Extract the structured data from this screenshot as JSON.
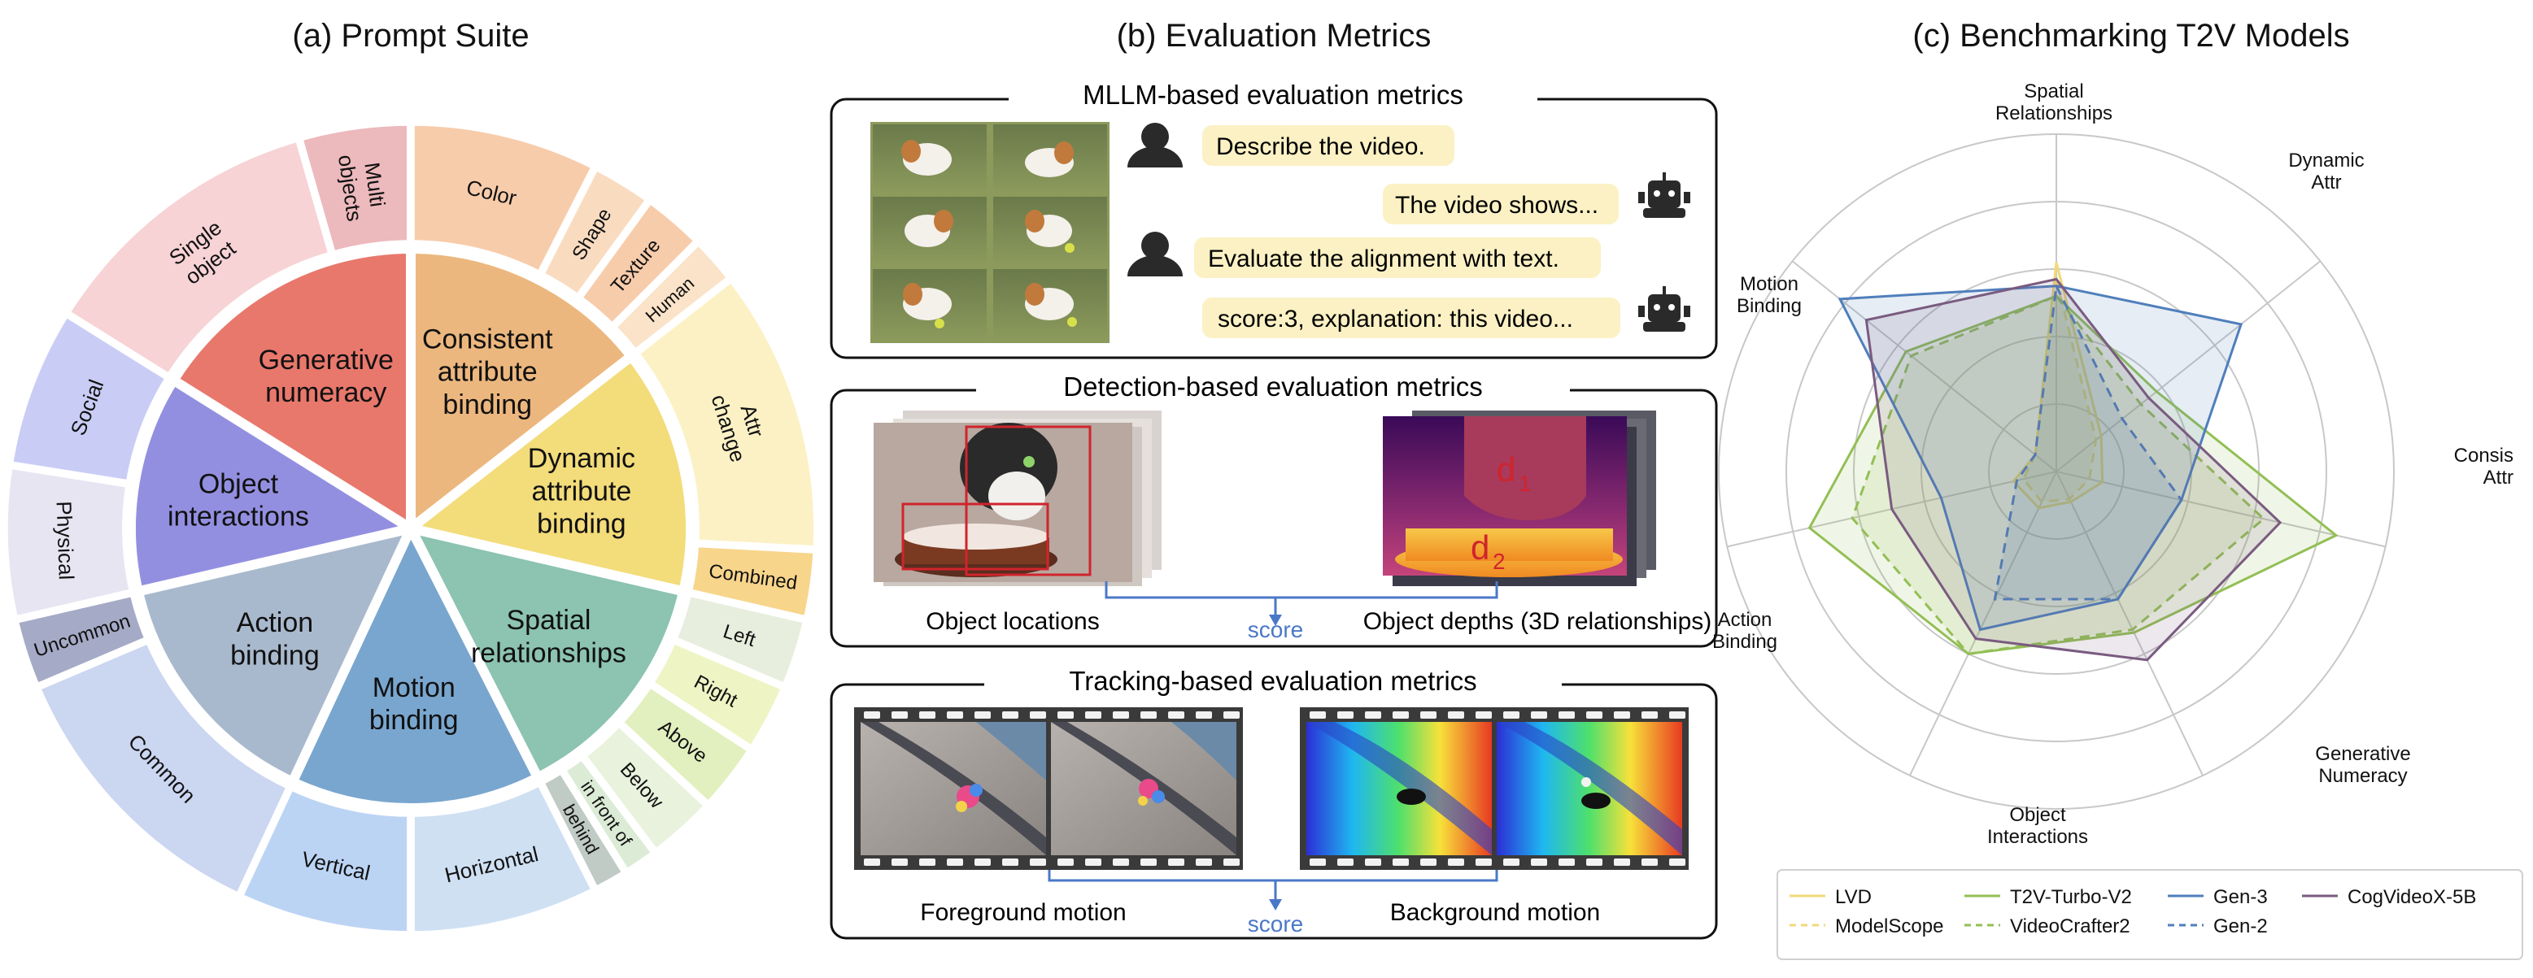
{
  "panel_a": {
    "title": "(a) Prompt Suite",
    "inner": [
      {
        "lines": [
          "Generative",
          "numeracy"
        ],
        "color": "#e8786c"
      },
      {
        "lines": [
          "Consistent",
          "attribute",
          "binding"
        ],
        "color": "#ecb77e"
      },
      {
        "lines": [
          "Dynamic",
          "attribute",
          "binding"
        ],
        "color": "#f3dc7a"
      },
      {
        "lines": [
          "Spatial",
          "relationships"
        ],
        "color": "#8cc3b1"
      },
      {
        "lines": [
          "Motion",
          "binding"
        ],
        "color": "#79a6cf"
      },
      {
        "lines": [
          "Action",
          "binding"
        ],
        "color": "#a9b9cd"
      },
      {
        "lines": [
          "Object",
          "interactions"
        ],
        "color": "#938fe0"
      }
    ],
    "outer": [
      {
        "lines": [
          "Multi",
          "objects"
        ],
        "color": "#ecb9bd"
      },
      {
        "lines": [
          "Color"
        ],
        "color": "#f7ccab"
      },
      {
        "lines": [
          "Shape"
        ],
        "color": "#f9dcc0"
      },
      {
        "lines": [
          "Texture"
        ],
        "color": "#f7ccab"
      },
      {
        "lines": [
          "Human"
        ],
        "color": "#fae3c8"
      },
      {
        "lines": [
          "Attr",
          "change"
        ],
        "color": "#fcf1c5"
      },
      {
        "lines": [
          "Combined"
        ],
        "color": "#f7d58b"
      },
      {
        "lines": [
          "Left"
        ],
        "color": "#e8eedd"
      },
      {
        "lines": [
          "Right"
        ],
        "color": "#eef4c4"
      },
      {
        "lines": [
          "Above"
        ],
        "color": "#e2efbf"
      },
      {
        "lines": [
          "Below"
        ],
        "color": "#e9f2dc"
      },
      {
        "lines": [
          "in front of"
        ],
        "color": "#dcebd6"
      },
      {
        "lines": [
          "behind"
        ],
        "color": "#bfcbc4"
      },
      {
        "lines": [
          "Horizontal"
        ],
        "color": "#cfe0f3"
      },
      {
        "lines": [
          "Vertical"
        ],
        "color": "#bcd4f4"
      },
      {
        "lines": [
          "Common"
        ],
        "color": "#cbd6f1"
      },
      {
        "lines": [
          "Uncommon"
        ],
        "color": "#a5aac6"
      },
      {
        "lines": [
          "Physical"
        ],
        "color": "#e8e5f2"
      },
      {
        "lines": [
          "Social"
        ],
        "color": "#c9cdf5"
      },
      {
        "lines": [
          "Single",
          "object"
        ],
        "color": "#f7d3d6"
      }
    ]
  },
  "panel_b": {
    "title": "(b) Evaluation Metrics",
    "mllm": {
      "title": "MLLM-based evaluation metrics",
      "user_msg_1": "Describe the video.",
      "bot_msg_1": "The video shows...",
      "user_msg_2": "Evaluate the alignment with text.",
      "bot_msg_2": "score:3, explanation: this video..."
    },
    "detection": {
      "title": "Detection-based evaluation metrics",
      "left_caption": "Object locations",
      "right_caption": "Object depths (3D relationships)",
      "score_label": "score",
      "d1_label": "d",
      "d1_sub": "1",
      "d2_label": "d",
      "d2_sub": "2"
    },
    "tracking": {
      "title": "Tracking-based evaluation metrics",
      "left_caption": "Foreground motion",
      "right_caption": "Background motion",
      "score_label": "score"
    }
  },
  "panel_c": {
    "title": "(c) Benchmarking T2V Models",
    "chart_data": {
      "type": "radar",
      "axes": [
        [
          "Spatial",
          "Relationships"
        ],
        [
          "Dynamic",
          "Attr"
        ],
        [
          "Consis",
          "Attr"
        ],
        [
          "Generative",
          "Numeracy"
        ],
        [
          "Object",
          "Interactions"
        ],
        [
          "Action",
          "Binding"
        ],
        [
          "Motion",
          "Binding"
        ]
      ],
      "range": [
        0,
        1
      ],
      "grid": true,
      "legend_position": "bottom",
      "series": [
        {
          "name": "LVD",
          "color": "#f1d97a",
          "dash": false,
          "values": [
            0.62,
            0.17,
            0.14,
            0.1,
            0.12,
            0.13,
            0.08
          ]
        },
        {
          "name": "ModelScope",
          "color": "#f1d97a",
          "dash": true,
          "values": [
            0.57,
            0.15,
            0.1,
            0.09,
            0.1,
            0.1,
            0.08
          ]
        },
        {
          "name": "T2V-Turbo-V2",
          "color": "#93bf55",
          "dash": false,
          "values": [
            0.52,
            0.38,
            0.85,
            0.53,
            0.6,
            0.75,
            0.57
          ]
        },
        {
          "name": "VideoCrafter2",
          "color": "#93bf55",
          "dash": true,
          "values": [
            0.52,
            0.32,
            0.63,
            0.52,
            0.6,
            0.62,
            0.55
          ]
        },
        {
          "name": "Gen-3",
          "color": "#4f7fbb",
          "dash": false,
          "values": [
            0.55,
            0.7,
            0.38,
            0.42,
            0.52,
            0.35,
            0.82
          ]
        },
        {
          "name": "Gen-2",
          "color": "#4f7fbb",
          "dash": true,
          "values": [
            0.55,
            0.25,
            0.38,
            0.42,
            0.42,
            0.12,
            0.08
          ]
        },
        {
          "name": "CogVideoX-5B",
          "color": "#7a5b80",
          "dash": false,
          "values": [
            0.57,
            0.35,
            0.68,
            0.62,
            0.55,
            0.5,
            0.72
          ]
        }
      ]
    }
  }
}
